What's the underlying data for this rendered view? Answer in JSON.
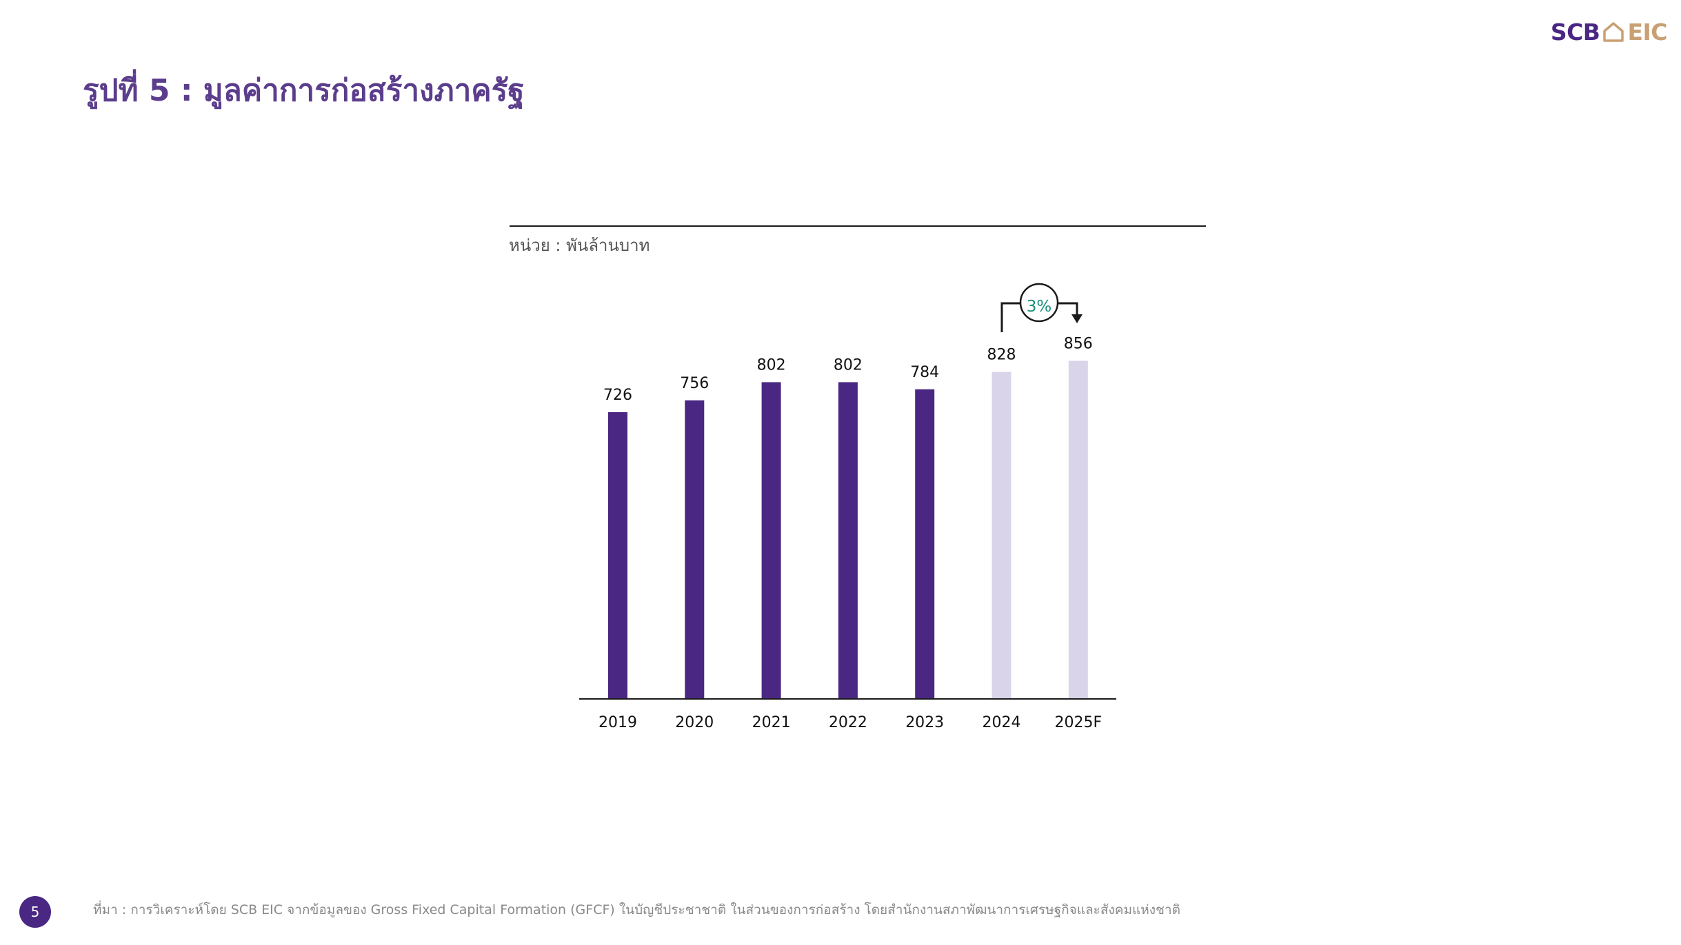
{
  "logo": {
    "left": "SCB",
    "right": "EIC"
  },
  "title": "รูปที่ 5 : มูลค่าการก่อสร้างภาครัฐ",
  "unit_label": "หน่วย : พันล้านบาท",
  "growth_callout": "3%",
  "page_number": "5",
  "source": "ที่มา : การวิเคราะห์โดย SCB EIC จากข้อมูลของ Gross Fixed Capital Formation (GFCF) ในบัญชีประชาชาติ ในส่วนของการก่อสร้าง โดยสำนักงานสภาพัฒนาการเศรษฐกิจและสังคมแห่งชาติ",
  "colors": {
    "actual": "#4a2783",
    "forecast": "#d9d4e9",
    "callout_text": "#1a8f7a",
    "brand_purple": "#4a2783",
    "brand_gold": "#c9a073"
  },
  "chart_data": {
    "type": "bar",
    "categories": [
      "2019",
      "2020",
      "2021",
      "2022",
      "2023",
      "2024",
      "2025F"
    ],
    "values": [
      726,
      756,
      802,
      802,
      784,
      828,
      856
    ],
    "data_labels": [
      "726",
      "756",
      "802",
      "802",
      "784",
      "828",
      "856"
    ],
    "bar_style": [
      "actual",
      "actual",
      "actual",
      "actual",
      "actual",
      "forecast",
      "forecast"
    ],
    "ylabel": "หน่วย : พันล้านบาท",
    "ylim": [
      0,
      900
    ],
    "grid": false,
    "legend": "none",
    "annotation": {
      "text": "3%",
      "from": "2024",
      "to": "2025F"
    }
  }
}
